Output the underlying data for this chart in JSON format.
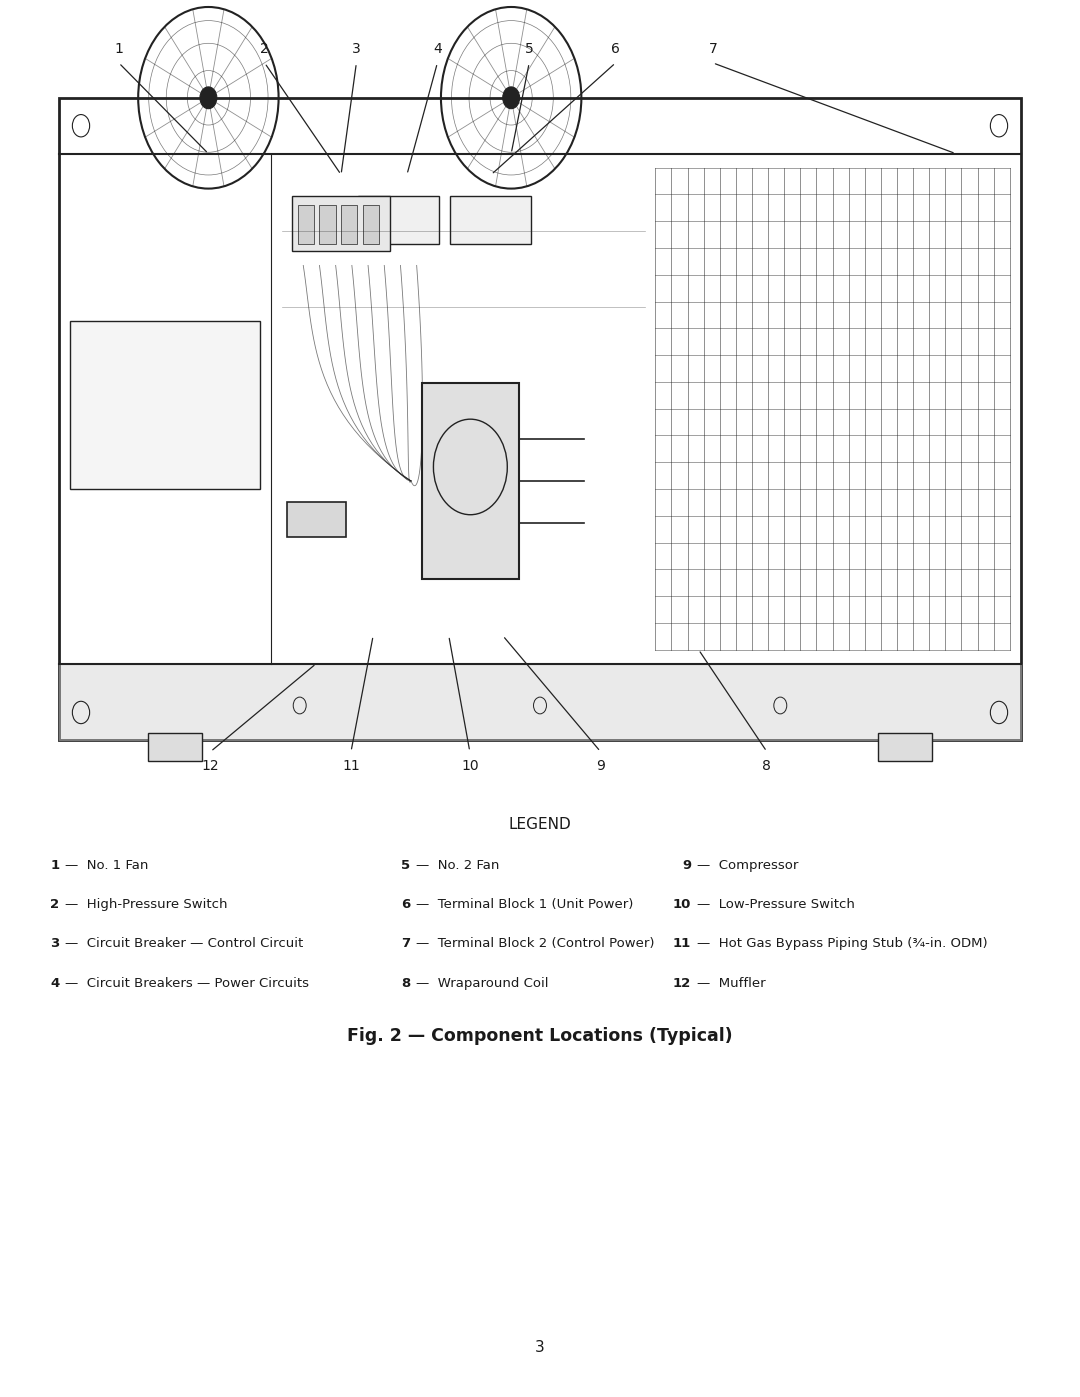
{
  "title": "Fig. 2 — Component Locations (Typical)",
  "legend_title": "LEGEND",
  "page_number": "3",
  "background_color": "#ffffff",
  "legend_items_col1": [
    [
      "1",
      "No. 1 Fan"
    ],
    [
      "2",
      "High-Pressure Switch"
    ],
    [
      "3",
      "Circuit Breaker — Control Circuit"
    ],
    [
      "4",
      "Circuit Breakers — Power Circuits"
    ]
  ],
  "legend_items_col2": [
    [
      "5",
      "No. 2 Fan"
    ],
    [
      "6",
      "Terminal Block 1 (Unit Power)"
    ],
    [
      "7",
      "Terminal Block 2 (Control Power)"
    ],
    [
      "8",
      "Wraparound Coil"
    ]
  ],
  "legend_items_col3": [
    [
      "9",
      "Compressor"
    ],
    [
      "10",
      "Low-Pressure Switch"
    ],
    [
      "11",
      "Hot Gas Bypass Piping Stub (¾-in. ODM)"
    ],
    [
      "12",
      "Muffler"
    ]
  ],
  "text_color": "#1a1a1a",
  "line_color": "#222222"
}
